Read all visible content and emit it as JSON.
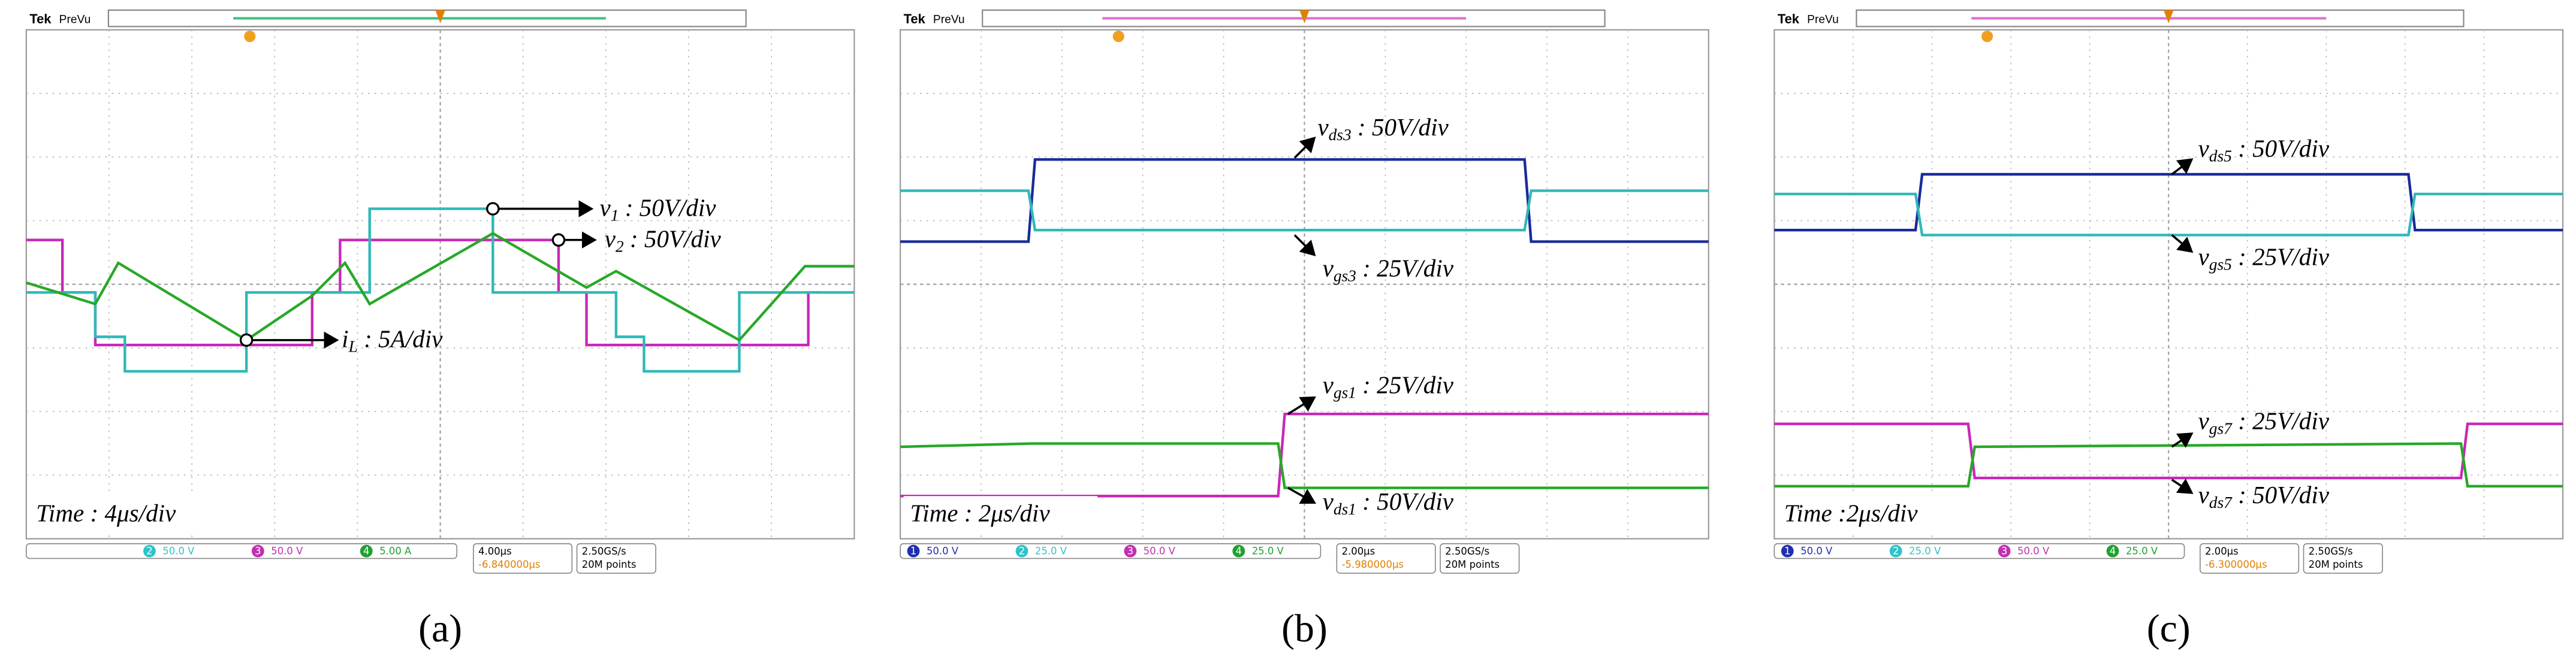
{
  "panels": [
    {
      "label": "(a)",
      "brand": "Tek",
      "mode": "PreVu",
      "time": "Time : 4μs/div",
      "annotations": [
        {
          "var": "v",
          "sub": "1",
          "text": " : 50V/div"
        },
        {
          "var": "v",
          "sub": "2",
          "text": " : 50V/div"
        },
        {
          "var": "i",
          "sub": "L",
          "text": " : 5A/div"
        }
      ],
      "channels": [
        {
          "num": "2",
          "scale": "50.0 V"
        },
        {
          "num": "3",
          "scale": "50.0 V"
        },
        {
          "num": "4",
          "scale": "5.00 A"
        }
      ],
      "timebase": "4.00μs",
      "position": "-6.840000μs",
      "rate": "2.50GS/s",
      "points": "20M points"
    },
    {
      "label": "(b)",
      "brand": "Tek",
      "mode": "PreVu",
      "time": "Time : 2μs/div",
      "annotations": [
        {
          "var": "v",
          "sub": "ds3",
          "text": " : 50V/div"
        },
        {
          "var": "v",
          "sub": "gs3",
          "text": " : 25V/div"
        },
        {
          "var": "v",
          "sub": "gs1",
          "text": " : 25V/div"
        },
        {
          "var": "v",
          "sub": "ds1",
          "text": " : 50V/div"
        }
      ],
      "channels": [
        {
          "num": "1",
          "scale": "50.0 V"
        },
        {
          "num": "2",
          "scale": "25.0 V"
        },
        {
          "num": "3",
          "scale": "50.0 V"
        },
        {
          "num": "4",
          "scale": "25.0 V"
        }
      ],
      "timebase": "2.00μs",
      "position": "-5.980000μs",
      "rate": "2.50GS/s",
      "points": "20M points"
    },
    {
      "label": "(c)",
      "brand": "Tek",
      "mode": "PreVu",
      "time": "Time :2μs/div",
      "annotations": [
        {
          "var": "v",
          "sub": "ds5",
          "text": " : 50V/div"
        },
        {
          "var": "v",
          "sub": "gs5",
          "text": " : 25V/div"
        },
        {
          "var": "v",
          "sub": "gs7",
          "text": " : 25V/div"
        },
        {
          "var": "v",
          "sub": "ds7",
          "text": " : 50V/div"
        }
      ],
      "channels": [
        {
          "num": "1",
          "scale": "50.0 V"
        },
        {
          "num": "2",
          "scale": "25.0 V"
        },
        {
          "num": "3",
          "scale": "50.0 V"
        },
        {
          "num": "4",
          "scale": "25.0 V"
        }
      ],
      "timebase": "2.00μs",
      "position": "-6.300000μs",
      "rate": "2.50GS/s",
      "points": "20M points"
    }
  ]
}
